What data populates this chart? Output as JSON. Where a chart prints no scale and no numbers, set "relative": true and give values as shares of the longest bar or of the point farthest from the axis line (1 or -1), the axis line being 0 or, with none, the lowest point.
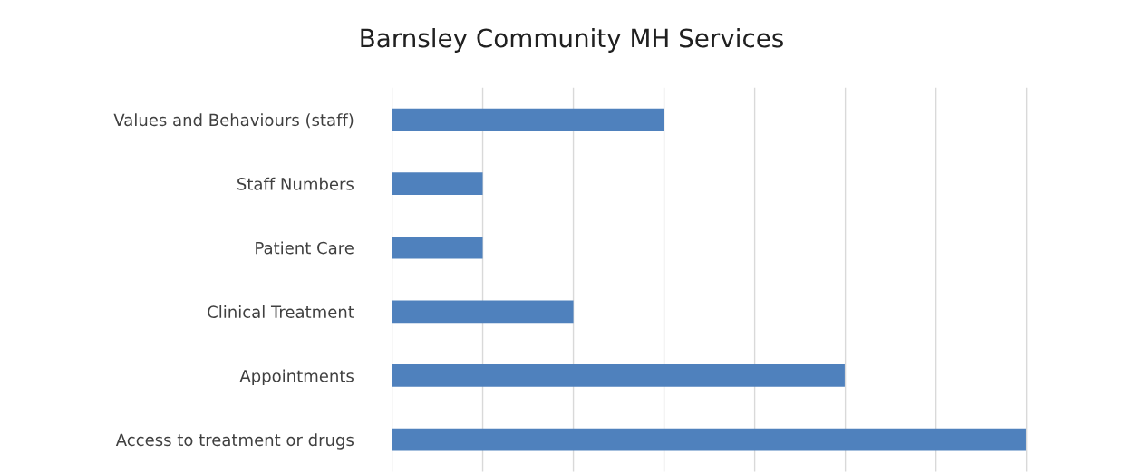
{
  "chart_data": {
    "type": "bar",
    "orientation": "horizontal",
    "relative": true,
    "title": "Barnsley Community MH Services",
    "categories": [
      "Values and Behaviours (staff)",
      "Staff Numbers",
      "Patient Care",
      "Clinical Treatment",
      "Appointments",
      "Access to treatment or drugs"
    ],
    "values": [
      0.429,
      0.143,
      0.143,
      0.286,
      0.714,
      1
    ],
    "color": "#4f81bd",
    "grid": "x"
  }
}
